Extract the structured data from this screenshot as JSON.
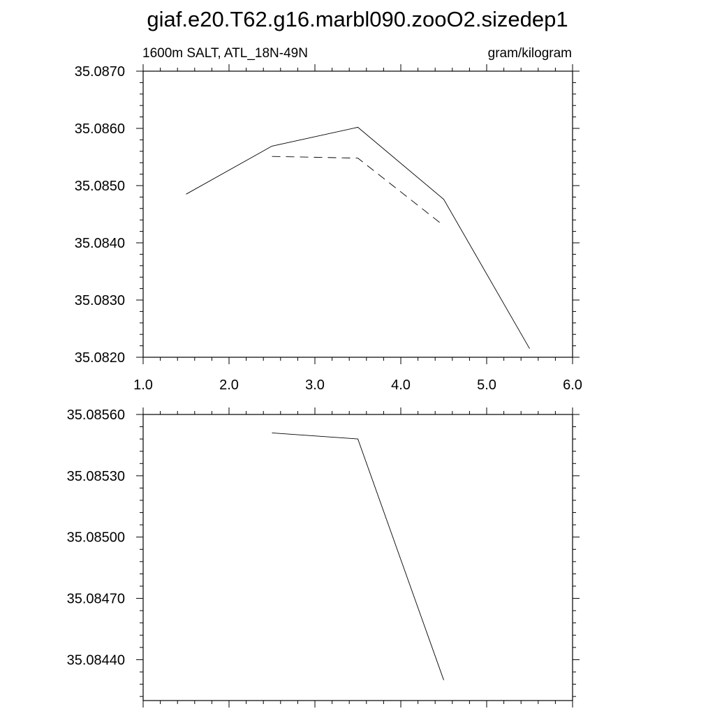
{
  "title": "giaf.e20.T62.g16.marbl090.zooO2.sizedep1",
  "colors": {
    "line": "#000000",
    "frame": "#000000",
    "background": "#ffffff"
  },
  "chart_data": [
    {
      "type": "line",
      "left_label": "1600m SALT, ATL_18N-49N",
      "right_label": "gram/kilogram",
      "xlim": [
        1.0,
        6.0
      ],
      "ylim": [
        35.082,
        35.087
      ],
      "x_ticks": [
        1.0,
        2.0,
        3.0,
        4.0,
        5.0,
        6.0
      ],
      "x_tick_labels": [
        "1.0",
        "2.0",
        "3.0",
        "4.0",
        "5.0",
        "6.0"
      ],
      "y_ticks": [
        35.082,
        35.083,
        35.084,
        35.085,
        35.086,
        35.087
      ],
      "y_tick_labels": [
        "35.0820",
        "35.0830",
        "35.0840",
        "35.0850",
        "35.0860",
        "35.0870"
      ],
      "grid": false,
      "series": [
        {
          "style": "solid",
          "x": [
            1.5,
            2.5,
            3.5,
            4.5,
            5.5
          ],
          "y": [
            35.08485,
            35.08569,
            35.08602,
            35.08476,
            35.08215
          ]
        },
        {
          "style": "dashed",
          "x": [
            2.5,
            3.5,
            4.5
          ],
          "y": [
            35.08551,
            35.08548,
            35.0843
          ]
        }
      ]
    },
    {
      "type": "line",
      "xlim": [
        1.0,
        6.0
      ],
      "ylim": [
        35.0842,
        35.0856
      ],
      "x_ticks": [
        1.0,
        2.0,
        3.0,
        4.0,
        5.0,
        6.0
      ],
      "y_ticks": [
        35.0844,
        35.0847,
        35.085,
        35.0853,
        35.0856
      ],
      "y_tick_labels": [
        "35.08440",
        "35.08470",
        "35.08500",
        "35.08530",
        "35.08560"
      ],
      "grid": false,
      "series": [
        {
          "style": "solid",
          "x": [
            2.5,
            3.5,
            4.5
          ],
          "y": [
            35.08551,
            35.08548,
            35.0843
          ]
        }
      ]
    }
  ]
}
